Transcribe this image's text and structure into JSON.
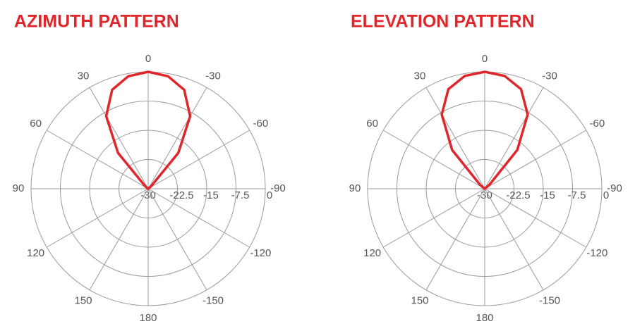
{
  "chart_data": [
    {
      "type": "polar",
      "title": "AZIMUTH PATTERN",
      "color": "#e0262b",
      "theta": [
        -180,
        -170,
        -160,
        -150,
        -140,
        -130,
        -120,
        -110,
        -100,
        -90,
        -80,
        -70,
        -60,
        -50,
        -40,
        -30,
        -20,
        -10,
        0,
        10,
        20,
        30,
        40,
        50,
        60,
        70,
        80,
        90,
        100,
        110,
        120,
        130,
        140,
        150,
        160,
        170
      ],
      "values": [
        -30,
        -30,
        -30,
        -30,
        -30,
        -30,
        -30,
        -30,
        -30,
        -30,
        -30,
        -30,
        -30,
        -29,
        -18,
        -8.5,
        -3,
        -0.7,
        0,
        -0.7,
        -3,
        -8.5,
        -18,
        -29,
        -30,
        -30,
        -30,
        -30,
        -30,
        -30,
        -30,
        -30,
        -30,
        -30,
        -30,
        -30
      ],
      "rlim": [
        -30,
        0
      ],
      "rticks": [
        -30,
        -22.5,
        -15,
        -7.5,
        0
      ],
      "thetaticks": [
        0,
        -30,
        -60,
        -90,
        -120,
        -150,
        180,
        150,
        120,
        90,
        60,
        30
      ]
    },
    {
      "type": "polar",
      "title": "ELEVATION PATTERN",
      "color": "#e0262b",
      "theta": [
        -180,
        -170,
        -160,
        -150,
        -140,
        -130,
        -120,
        -110,
        -100,
        -90,
        -80,
        -70,
        -60,
        -50,
        -40,
        -30,
        -20,
        -10,
        0,
        10,
        20,
        30,
        40,
        50,
        60,
        70,
        80,
        90,
        100,
        110,
        120,
        130,
        140,
        150,
        160,
        170
      ],
      "values": [
        -30,
        -30,
        -30,
        -30,
        -30,
        -30,
        -30,
        -30,
        -30,
        -30,
        -30,
        -30,
        -30,
        -28.5,
        -17,
        -8,
        -2.8,
        -0.6,
        0,
        -0.6,
        -2.8,
        -8,
        -17,
        -28.5,
        -30,
        -30,
        -30,
        -30,
        -30,
        -30,
        -30,
        -30,
        -30,
        -30,
        -30,
        -30
      ],
      "rlim": [
        -30,
        0
      ],
      "rticks": [
        -30,
        -22.5,
        -15,
        -7.5,
        0
      ],
      "thetaticks": [
        0,
        -30,
        -60,
        -90,
        -120,
        -150,
        180,
        150,
        120,
        90,
        60,
        30
      ]
    }
  ]
}
